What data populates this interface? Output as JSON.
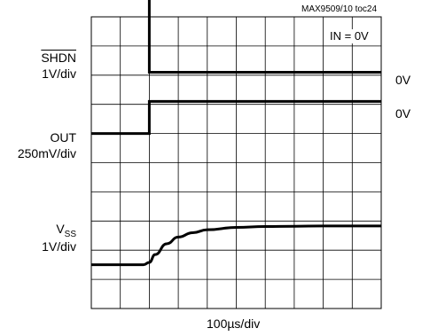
{
  "source_note": "MAX9509/10 toc24",
  "condition": "IN = 0V",
  "labels": {
    "shdn_name": "SHDN",
    "shdn_scale": "1V/div",
    "out_name": "OUT",
    "out_scale": "250mV/div",
    "vss_name": "V",
    "vss_sub": "SS",
    "vss_scale": "1V/div",
    "zero1": "0V",
    "zero2": "0V",
    "timebase": "100µs/div"
  },
  "chart_data": {
    "type": "line",
    "title": "",
    "xlabel": "100µs/div",
    "ylabel": "",
    "xlim": [
      0,
      1000
    ],
    "x_divisions": 10,
    "y_divisions": 10,
    "grid": true,
    "series": [
      {
        "name": "SHDN",
        "scale": "1V/div",
        "zero_div": 8.1,
        "x": [
          0,
          200,
          200,
          1000
        ],
        "values": [
          2.8,
          2.8,
          0,
          0
        ]
      },
      {
        "name": "OUT",
        "scale": "250mV/div",
        "zero_div": 7.1,
        "x": [
          0,
          200,
          200,
          1000
        ],
        "values": [
          -1.1,
          -1.1,
          0,
          0
        ]
      },
      {
        "name": "VSS",
        "scale": "1V/div",
        "zero_div": 1.5,
        "x": [
          0,
          180,
          200,
          220,
          260,
          300,
          350,
          400,
          500,
          600,
          700,
          800,
          1000
        ],
        "values": [
          0,
          0,
          0.08,
          0.35,
          0.72,
          0.95,
          1.1,
          1.2,
          1.28,
          1.31,
          1.32,
          1.33,
          1.33
        ]
      }
    ]
  }
}
